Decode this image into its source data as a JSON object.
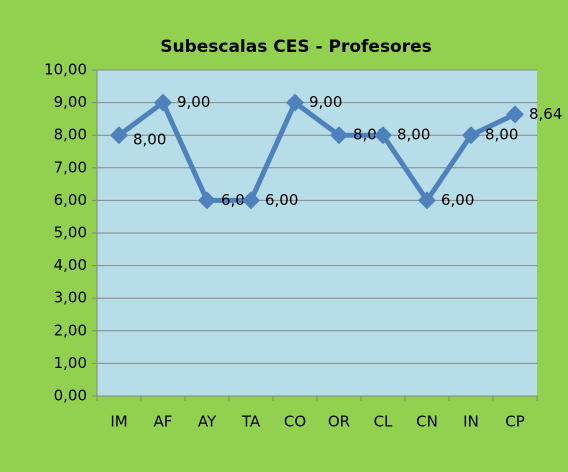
{
  "chart_data": {
    "type": "line",
    "title": "Subescalas CES - Profesores",
    "categories": [
      "IM",
      "AF",
      "AY",
      "TA",
      "CO",
      "OR",
      "CL",
      "CN",
      "IN",
      "CP"
    ],
    "series": [
      {
        "name": "Profesores",
        "color": "#4f81bd",
        "values": [
          8,
          9,
          6,
          6,
          9,
          8,
          8,
          6,
          8,
          8.64
        ],
        "value_labels": [
          "8,00",
          "9,00",
          "6,00",
          "6,00",
          "9,00",
          "8,00",
          "8,00",
          "6,00",
          "8,00",
          "8,64"
        ]
      }
    ],
    "ylim": [
      0,
      10
    ],
    "yticks": [
      {
        "value": 0,
        "label": "0,00"
      },
      {
        "value": 1,
        "label": "1,00"
      },
      {
        "value": 2,
        "label": "2,00"
      },
      {
        "value": 3,
        "label": "3,00"
      },
      {
        "value": 4,
        "label": "4,00"
      },
      {
        "value": 5,
        "label": "5,00"
      },
      {
        "value": 6,
        "label": "6,00"
      },
      {
        "value": 7,
        "label": "7,00"
      },
      {
        "value": 8,
        "label": "8,00"
      },
      {
        "value": 9,
        "label": "9,00"
      },
      {
        "value": 10,
        "label": "10,00"
      }
    ],
    "grid": true
  }
}
